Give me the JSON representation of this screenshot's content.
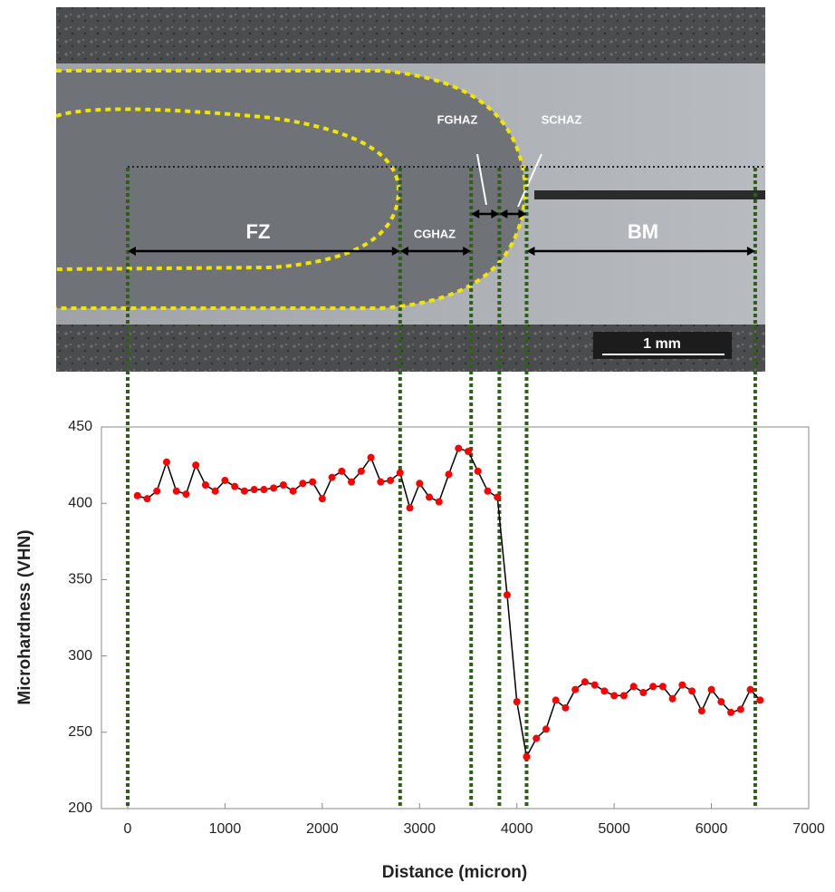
{
  "micrograph": {
    "labels": [
      "FZ",
      "CGHAZ",
      "FGHAZ",
      "SCHAZ",
      "BM"
    ],
    "scale_bar": "1 mm"
  },
  "chart_data": {
    "type": "line",
    "xlabel": "Distance (micron)",
    "ylabel": "Microhardness (VHN)",
    "x": [
      100,
      200,
      300,
      400,
      500,
      600,
      700,
      800,
      900,
      1000,
      1100,
      1200,
      1300,
      1400,
      1500,
      1600,
      1700,
      1800,
      1900,
      2000,
      2100,
      2200,
      2300,
      2400,
      2500,
      2600,
      2700,
      2800,
      2900,
      3000,
      3100,
      3200,
      3300,
      3400,
      3500,
      3600,
      3700,
      3800,
      3900,
      4000,
      4100,
      4200,
      4300,
      4400,
      4500,
      4600,
      4700,
      4800,
      4900,
      5000,
      5100,
      5200,
      5300,
      5400,
      5500,
      5600,
      5700,
      5800,
      5900,
      6000,
      6100,
      6200,
      6300,
      6400,
      6500
    ],
    "series": [
      {
        "color": "#000000",
        "marker_color": "#ff0000",
        "values": [
          405,
          403,
          408,
          427,
          408,
          406,
          425,
          412,
          408,
          415,
          411,
          408,
          409,
          409,
          410,
          412,
          408,
          413,
          414,
          403,
          417,
          421,
          414,
          421,
          430,
          414,
          415,
          420,
          397,
          413,
          404,
          401,
          419,
          436,
          434,
          421,
          408,
          404,
          340,
          270,
          234,
          246,
          252,
          271,
          266,
          278,
          283,
          281,
          277,
          274,
          274,
          280,
          276,
          280,
          280,
          272,
          281,
          277,
          264,
          278,
          270,
          263,
          265,
          278,
          271
        ]
      }
    ],
    "vlines": [
      0,
      2800,
      3530,
      3820,
      4100,
      6450
    ],
    "vline_color": "#2e5e1a",
    "xlim": [
      -270,
      7000
    ],
    "ylim": [
      200,
      450
    ],
    "xticks": [
      0,
      1000,
      2000,
      3000,
      4000,
      5000,
      6000,
      7000
    ],
    "yticks": [
      200,
      250,
      300,
      350,
      400,
      450
    ]
  }
}
